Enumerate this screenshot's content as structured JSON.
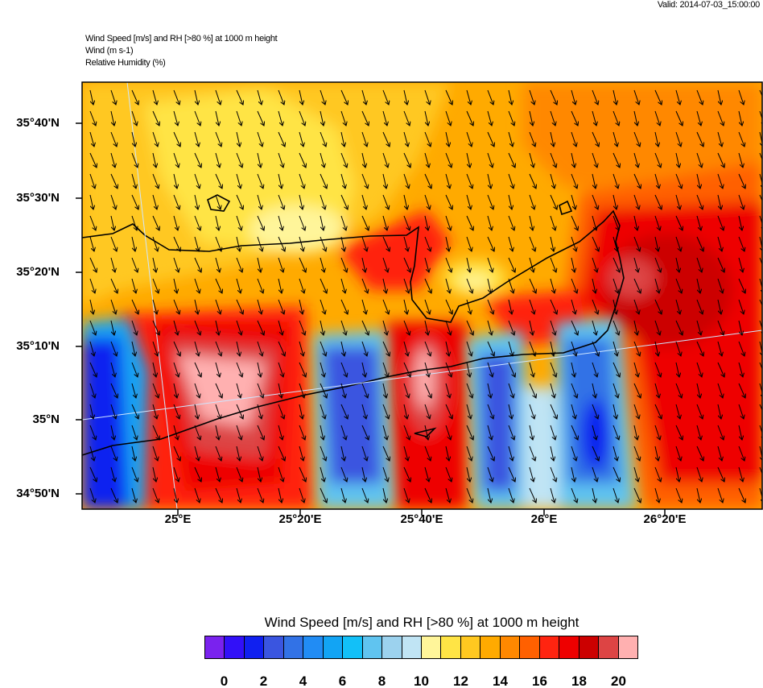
{
  "header": {
    "valid_time": "Valid: 2014-07-03_15:00:00",
    "title_line1": "Wind Speed [m/s] and RH [>80 %] at 1000 m height",
    "title_line2": "Wind   (m s-1)",
    "title_line3": "Relative Humidity   (%)"
  },
  "map": {
    "lat_labels": [
      "35°40'N",
      "35°30'N",
      "35°20'N",
      "35°10'N",
      "35°N",
      "34°50'N"
    ],
    "lon_labels": [
      "25°E",
      "25°20'E",
      "25°40'E",
      "26°E",
      "26°20'E"
    ]
  },
  "colorbar": {
    "title": "Wind Speed [m/s] and RH [>80 %] at 1000 m height",
    "colors": [
      "#7a22ee",
      "#3210f8",
      "#1020f0",
      "#3a55e0",
      "#3272e6",
      "#218cf4",
      "#12a4f4",
      "#12c0f8",
      "#60c4f0",
      "#9cd2ee",
      "#c0e4f4",
      "#fff59a",
      "#ffe445",
      "#ffc820",
      "#ffaa00",
      "#ff8800",
      "#ff6000",
      "#ff2410",
      "#ee0000",
      "#cc0000",
      "#dd4444",
      "#ffb0b0"
    ],
    "tick_labels": [
      "0",
      "2",
      "4",
      "6",
      "8",
      "10",
      "12",
      "14",
      "16",
      "18",
      "20"
    ]
  }
}
